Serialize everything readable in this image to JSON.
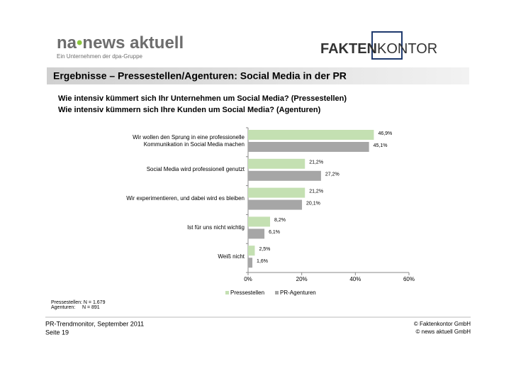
{
  "logo_left": {
    "part1": "na",
    "part2": "news aktuell",
    "tagline": "Ein Unternehmen der dpa-Gruppe"
  },
  "logo_right": {
    "part1": "FAKTEN",
    "part2": "KONTOR"
  },
  "header": {
    "title": "Ergebnisse – Pressestellen/Agenturen: Social Media in der PR",
    "questions": [
      "Wie intensiv kümmert sich Ihr Unternehmen um Social Media? (Pressestellen)",
      "Wie intensiv kümmern sich Ihre Kunden um Social Media? (Agenturen)"
    ]
  },
  "chart_data": {
    "type": "bar",
    "orientation": "horizontal",
    "categories": [
      "Wir wollen den Sprung in eine professionelle Kommunikation in Social Media machen",
      "Social Media wird professionell genutzt",
      "Wir experimentieren, und dabei wird es bleiben",
      "Ist für uns nicht wichtig",
      "Weiß nicht"
    ],
    "series": [
      {
        "name": "Pressestellen",
        "color": "#c4e0b2",
        "values": [
          46.9,
          21.2,
          21.2,
          8.2,
          2.5
        ],
        "value_labels": [
          "46,9%",
          "21,2%",
          "21,2%",
          "8,2%",
          "2,5%"
        ]
      },
      {
        "name": "PR-Agenturen",
        "color": "#a6a6a6",
        "values": [
          45.1,
          27.2,
          20.1,
          6.1,
          1.6
        ],
        "value_labels": [
          "45,1%",
          "27,2%",
          "20,1%",
          "6,1%",
          "1,6%"
        ]
      }
    ],
    "xlim": [
      0,
      60
    ],
    "xticks": [
      {
        "value": 0,
        "label": "0%"
      },
      {
        "value": 20,
        "label": "20%"
      },
      {
        "value": 40,
        "label": "40%"
      },
      {
        "value": 60,
        "label": "60%"
      }
    ],
    "legend": "bottom"
  },
  "notes": [
    "Pressestellen: N = 1.679",
    "Agenturen:     N = 891"
  ],
  "footer": {
    "left": [
      "PR-Trendmonitor, September 2011",
      "Seite 19"
    ],
    "right": [
      "© Faktenkontor GmbH",
      "© news aktuell GmbH"
    ]
  }
}
